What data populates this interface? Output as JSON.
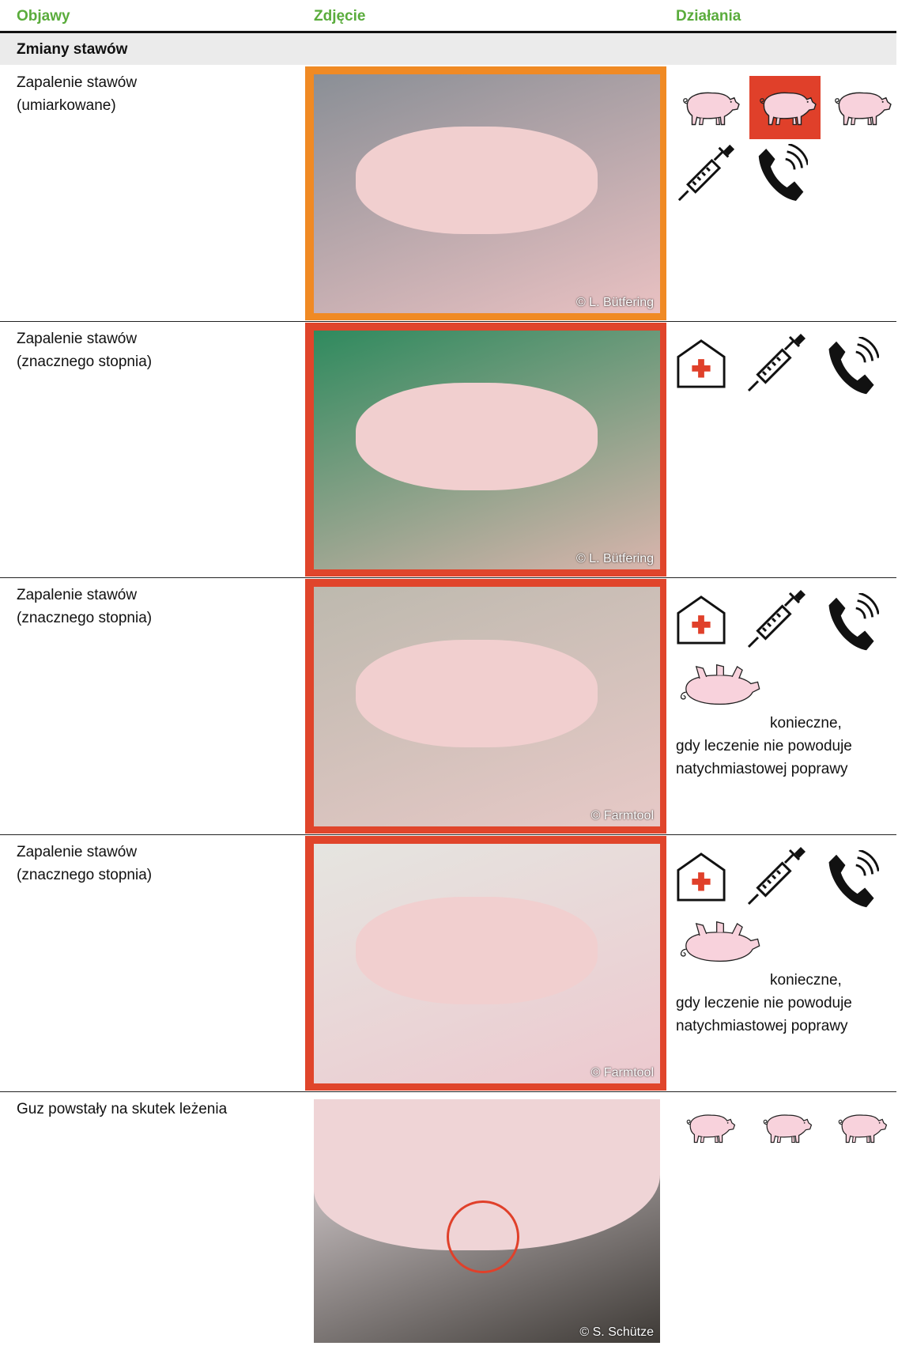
{
  "header": {
    "columns": [
      "Objawy",
      "Zdjęcie",
      "Działania"
    ]
  },
  "section": {
    "title": "Zmiany stawów"
  },
  "rows": [
    {
      "symptom": [
        "Zapalenie stawów",
        "(umiarkowane)"
      ],
      "credit": "© L. Bütfering"
    },
    {
      "symptom": [
        "Zapalenie stawów",
        "(znacznego stopnia)"
      ],
      "credit": "© L. Bütfering"
    },
    {
      "symptom": [
        "Zapalenie stawów",
        "(znacznego stopnia)"
      ],
      "credit": "© Farmtool",
      "note": [
        "konieczne,",
        "gdy leczenie nie powoduje",
        "natychmiastowej poprawy"
      ]
    },
    {
      "symptom": [
        "Zapalenie stawów",
        "(znacznego stopnia)"
      ],
      "credit": "© Farmtool",
      "note": [
        "konieczne,",
        "gdy leczenie nie powoduje",
        "natychmiastowej poprawy"
      ]
    },
    {
      "symptom": [
        "Guz powstały na skutek leżenia"
      ],
      "credit": "© S. Schütze"
    }
  ]
}
